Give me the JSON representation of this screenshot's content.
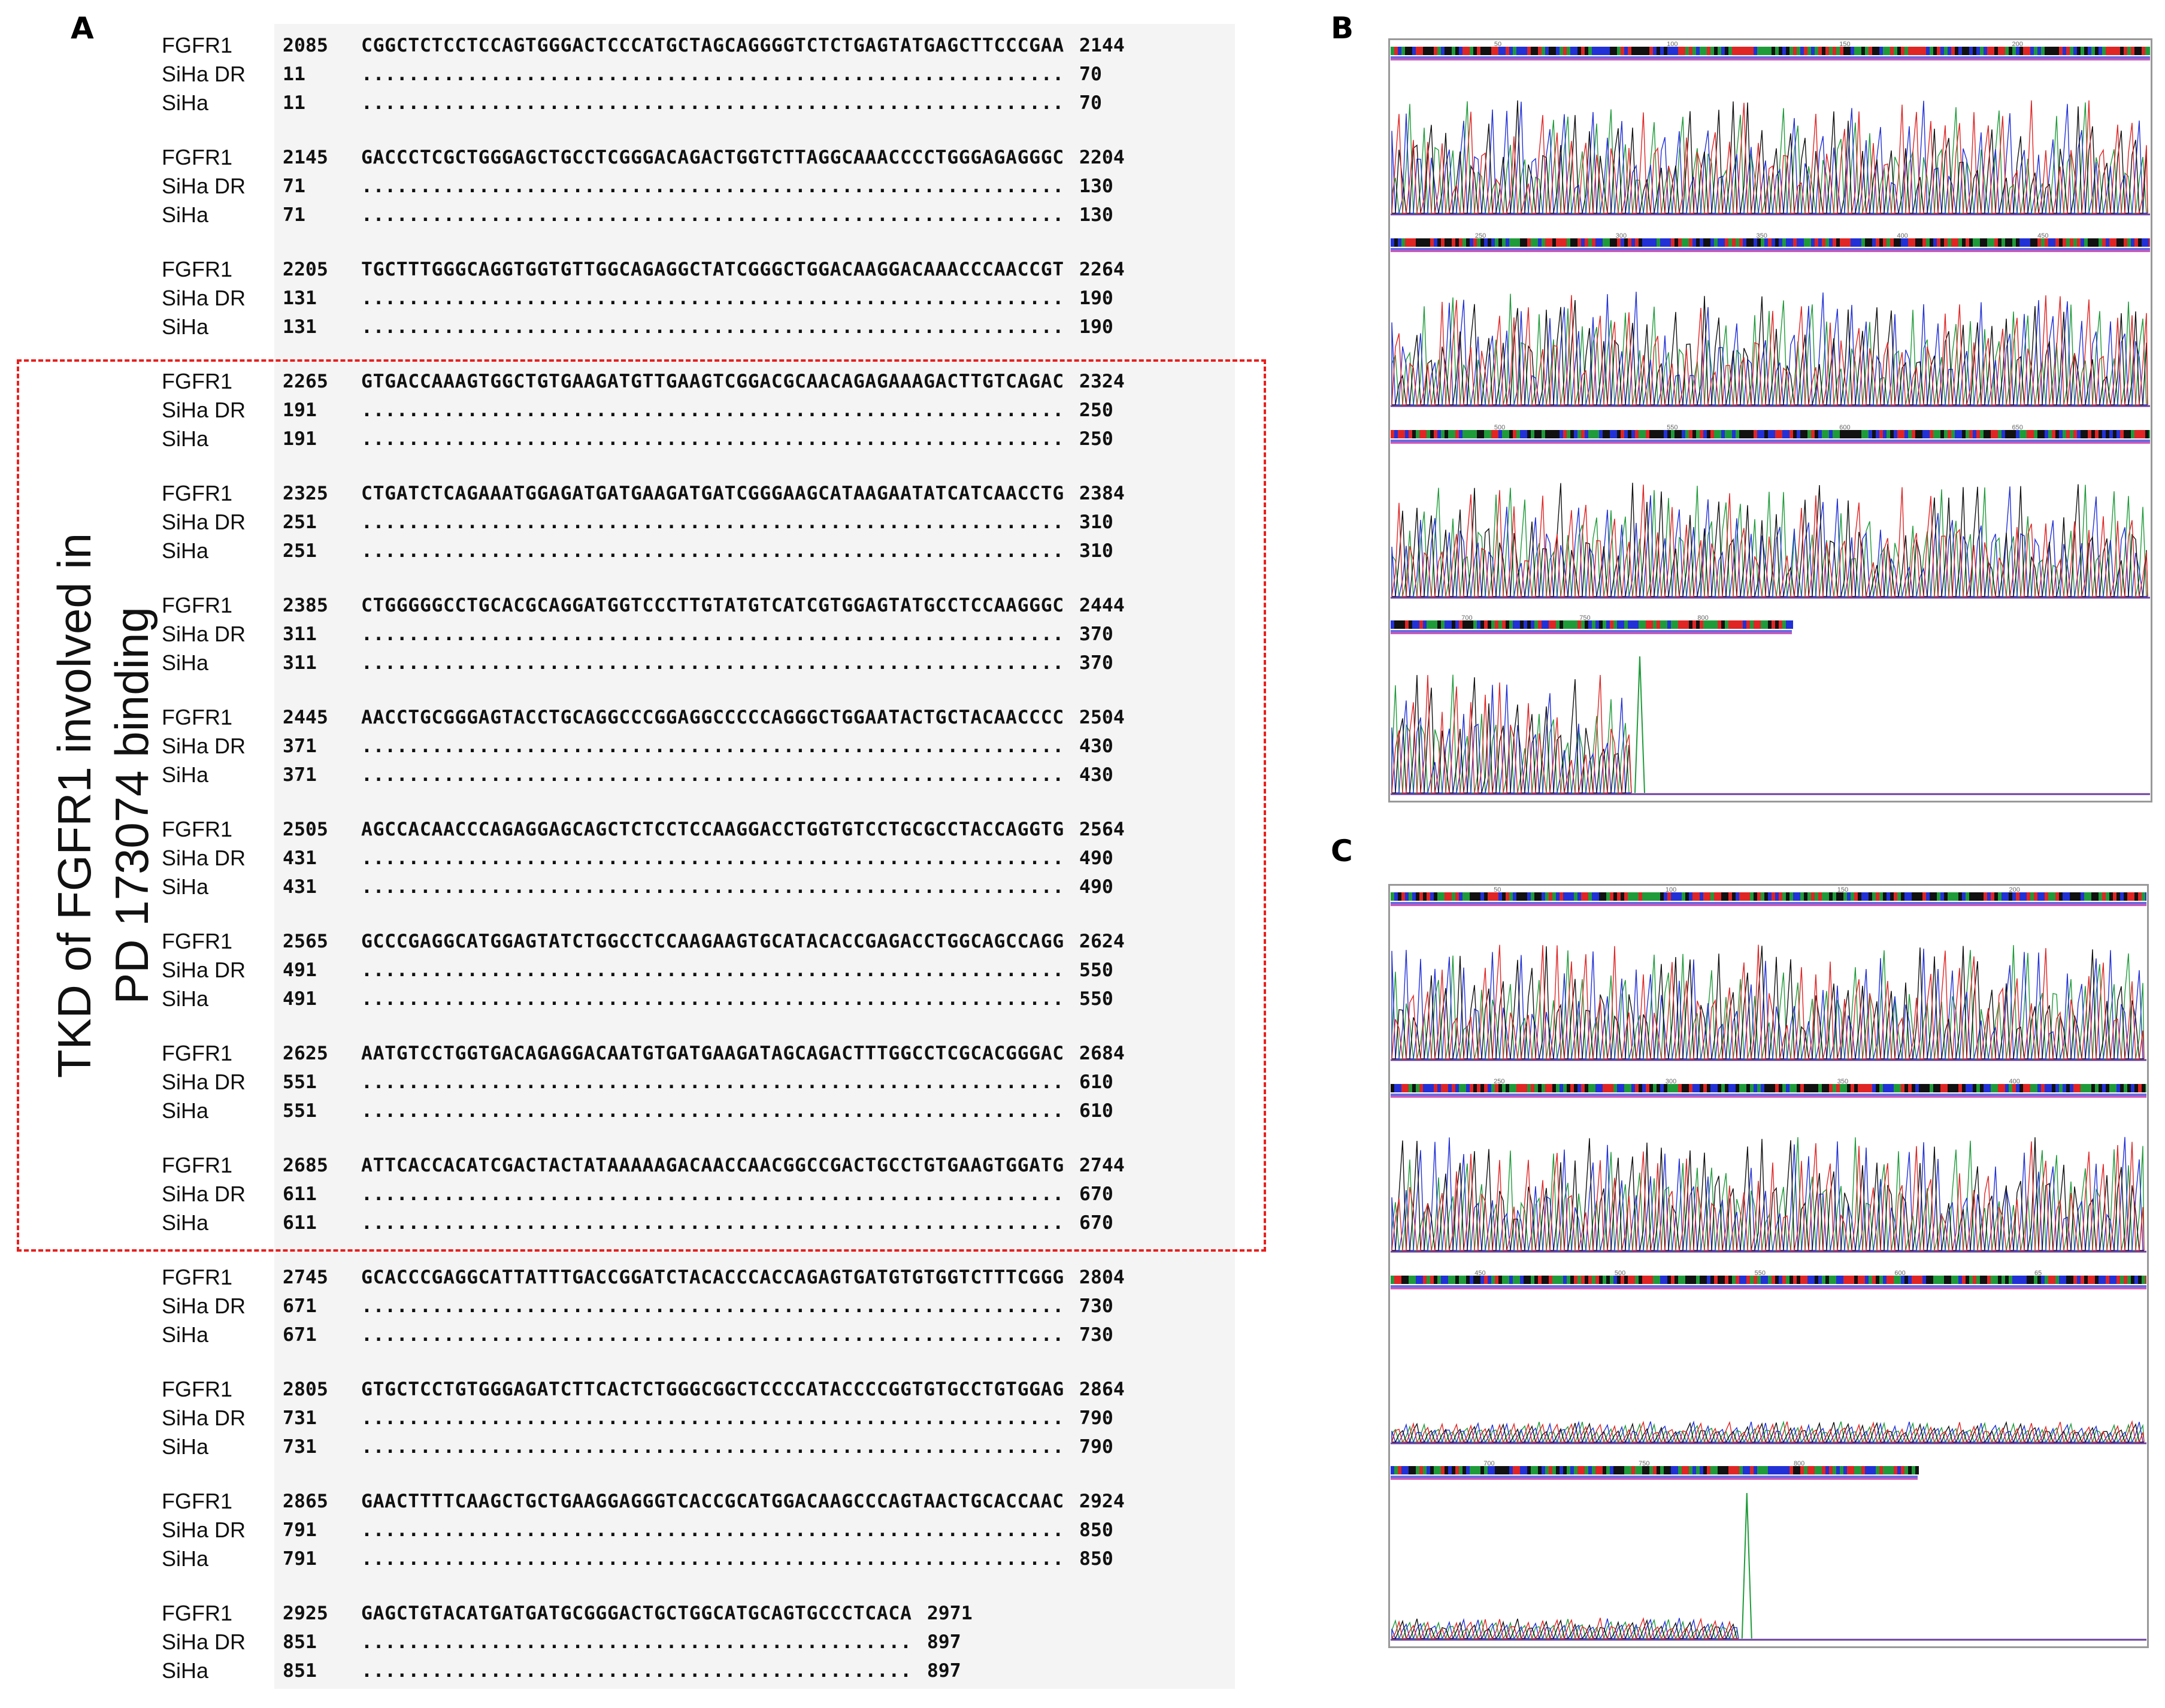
{
  "panels": {
    "a": "A",
    "b": "B",
    "c": "C"
  },
  "box_label_lines": [
    "TKD of FGFR1 involved in",
    "PD 173074 binding"
  ],
  "colors": {
    "box_border": "#e8201e",
    "base_A": "#1f9b3a",
    "base_C": "#2231d6",
    "base_G": "#111111",
    "base_T": "#e02525"
  },
  "alignment": [
    {
      "rows": [
        {
          "name": "FGFR1",
          "start": "2085",
          "seq": "CGGCTCTCCTCCAGTGGGACTCCCATGCTAGCAGGGGTCTCTGAGTATGAGCTTCCCGAA",
          "end": "2144"
        },
        {
          "name": "SiHa DR",
          "start": "11",
          "seq": "............................................................",
          "end": "70"
        },
        {
          "name": "SiHa",
          "start": "11",
          "seq": "............................................................",
          "end": "70"
        }
      ]
    },
    {
      "rows": [
        {
          "name": "FGFR1",
          "start": "2145",
          "seq": "GACCCTCGCTGGGAGCTGCCTCGGGACAGACTGGTCTTAGGCAAACCCCTGGGAGAGGGC",
          "end": "2204"
        },
        {
          "name": "SiHa DR",
          "start": "71",
          "seq": "............................................................",
          "end": "130"
        },
        {
          "name": "SiHa",
          "start": "71",
          "seq": "............................................................",
          "end": "130"
        }
      ]
    },
    {
      "rows": [
        {
          "name": "FGFR1",
          "start": "2205",
          "seq": "TGCTTTGGGCAGGTGGTGTTGGCAGAGGCTATCGGGCTGGACAAGGACAAACCCAACCGT",
          "end": "2264"
        },
        {
          "name": "SiHa DR",
          "start": "131",
          "seq": "............................................................",
          "end": "190"
        },
        {
          "name": "SiHa",
          "start": "131",
          "seq": "............................................................",
          "end": "190"
        }
      ]
    },
    {
      "rows": [
        {
          "name": "FGFR1",
          "start": "2265",
          "seq": "GTGACCAAAGTGGCTGTGAAGATGTTGAAGTCGGACGCAACAGAGAAAGACTTGTCAGAC",
          "end": "2324"
        },
        {
          "name": "SiHa DR",
          "start": "191",
          "seq": "............................................................",
          "end": "250"
        },
        {
          "name": "SiHa",
          "start": "191",
          "seq": "............................................................",
          "end": "250"
        }
      ]
    },
    {
      "rows": [
        {
          "name": "FGFR1",
          "start": "2325",
          "seq": "CTGATCTCAGAAATGGAGATGATGAAGATGATCGGGAAGCATAAGAATATCATCAACCTG",
          "end": "2384"
        },
        {
          "name": "SiHa DR",
          "start": "251",
          "seq": "............................................................",
          "end": "310"
        },
        {
          "name": "SiHa",
          "start": "251",
          "seq": "............................................................",
          "end": "310"
        }
      ]
    },
    {
      "rows": [
        {
          "name": "FGFR1",
          "start": "2385",
          "seq": "CTGGGGGCCTGCACGCAGGATGGTCCCTTGTATGTCATCGTGGAGTATGCCTCCAAGGGC",
          "end": "2444"
        },
        {
          "name": "SiHa DR",
          "start": "311",
          "seq": "............................................................",
          "end": "370"
        },
        {
          "name": "SiHa",
          "start": "311",
          "seq": "............................................................",
          "end": "370"
        }
      ]
    },
    {
      "rows": [
        {
          "name": "FGFR1",
          "start": "2445",
          "seq": "AACCTGCGGGAGTACCTGCAGGCCCGGAGGCCCCCAGGGCTGGAATACTGCTACAACCCC",
          "end": "2504"
        },
        {
          "name": "SiHa DR",
          "start": "371",
          "seq": "............................................................",
          "end": "430"
        },
        {
          "name": "SiHa",
          "start": "371",
          "seq": "............................................................",
          "end": "430"
        }
      ]
    },
    {
      "rows": [
        {
          "name": "FGFR1",
          "start": "2505",
          "seq": "AGCCACAACCCAGAGGAGCAGCTCTCCTCCAAGGACCTGGTGTCCTGCGCCTACCAGGTG",
          "end": "2564"
        },
        {
          "name": "SiHa DR",
          "start": "431",
          "seq": "............................................................",
          "end": "490"
        },
        {
          "name": "SiHa",
          "start": "431",
          "seq": "............................................................",
          "end": "490"
        }
      ]
    },
    {
      "rows": [
        {
          "name": "FGFR1",
          "start": "2565",
          "seq": "GCCCGAGGCATGGAGTATCTGGCCTCCAAGAAGTGCATACACCGAGACCTGGCAGCCAGG",
          "end": "2624"
        },
        {
          "name": "SiHa DR",
          "start": "491",
          "seq": "............................................................",
          "end": "550"
        },
        {
          "name": "SiHa",
          "start": "491",
          "seq": "............................................................",
          "end": "550"
        }
      ]
    },
    {
      "rows": [
        {
          "name": "FGFR1",
          "start": "2625",
          "seq": "AATGTCCTGGTGACAGAGGACAATGTGATGAAGATAGCAGACTTTGGCCTCGCACGGGAC",
          "end": "2684"
        },
        {
          "name": "SiHa DR",
          "start": "551",
          "seq": "............................................................",
          "end": "610"
        },
        {
          "name": "SiHa",
          "start": "551",
          "seq": "............................................................",
          "end": "610"
        }
      ]
    },
    {
      "rows": [
        {
          "name": "FGFR1",
          "start": "2685",
          "seq": "ATTCACCACATCGACTACTATAAAAAGACAACCAACGGCCGACTGCCTGTGAAGTGGATG",
          "end": "2744"
        },
        {
          "name": "SiHa DR",
          "start": "611",
          "seq": "............................................................",
          "end": "670"
        },
        {
          "name": "SiHa",
          "start": "611",
          "seq": "............................................................",
          "end": "670"
        }
      ]
    },
    {
      "rows": [
        {
          "name": "FGFR1",
          "start": "2745",
          "seq": "GCACCCGAGGCATTATTTGACCGGATCTACACCCACCAGAGTGATGTGTGGTCTTTCGGG",
          "end": "2804"
        },
        {
          "name": "SiHa DR",
          "start": "671",
          "seq": "............................................................",
          "end": "730"
        },
        {
          "name": "SiHa",
          "start": "671",
          "seq": "............................................................",
          "end": "730"
        }
      ]
    },
    {
      "rows": [
        {
          "name": "FGFR1",
          "start": "2805",
          "seq": "GTGCTCCTGTGGGAGATCTTCACTCTGGGCGGCTCCCCATACCCCGGTGTGCCTGTGGAG",
          "end": "2864"
        },
        {
          "name": "SiHa DR",
          "start": "731",
          "seq": "............................................................",
          "end": "790"
        },
        {
          "name": "SiHa",
          "start": "731",
          "seq": "............................................................",
          "end": "790"
        }
      ]
    },
    {
      "rows": [
        {
          "name": "FGFR1",
          "start": "2865",
          "seq": "GAACTTTTCAAGCTGCTGAAGGAGGGTCACCGCATGGACAAGCCCAGTAACTGCACCAAC",
          "end": "2924"
        },
        {
          "name": "SiHa DR",
          "start": "791",
          "seq": "............................................................",
          "end": "850"
        },
        {
          "name": "SiHa",
          "start": "791",
          "seq": "............................................................",
          "end": "850"
        }
      ]
    },
    {
      "rows": [
        {
          "name": "FGFR1",
          "start": "2925",
          "seq": "GAGCTGTACATGATGATGCGGGACTGCTGGCATGCAGTGCCCTCACA",
          "end": "2971"
        },
        {
          "name": "SiHa DR",
          "start": "851",
          "seq": "...............................................",
          "end": "897"
        },
        {
          "name": "SiHa",
          "start": "851",
          "seq": "...............................................",
          "end": "897"
        }
      ]
    }
  ],
  "chromatograms": [
    {
      "panel": "B",
      "rows": [
        {
          "ticks": [
            "50",
            "100",
            "150",
            "200"
          ],
          "trace": "strong"
        },
        {
          "ticks": [
            "250",
            "300",
            "350",
            "400",
            "450"
          ],
          "trace": "strong"
        },
        {
          "ticks": [
            "500",
            "550",
            "600",
            "650"
          ],
          "trace": "strong"
        },
        {
          "ticks": [
            "700",
            "750",
            "800"
          ],
          "trace": "end"
        }
      ]
    },
    {
      "panel": "C",
      "rows": [
        {
          "ticks": [
            "50",
            "100",
            "150",
            "200"
          ],
          "trace": "strong"
        },
        {
          "ticks": [
            "250",
            "300",
            "350",
            "400"
          ],
          "trace": "strong"
        },
        {
          "ticks": [
            "450",
            "500",
            "550",
            "600",
            "65"
          ],
          "trace": "weak"
        },
        {
          "ticks": [
            "700",
            "750",
            "800"
          ],
          "trace": "weak-end"
        }
      ]
    }
  ]
}
